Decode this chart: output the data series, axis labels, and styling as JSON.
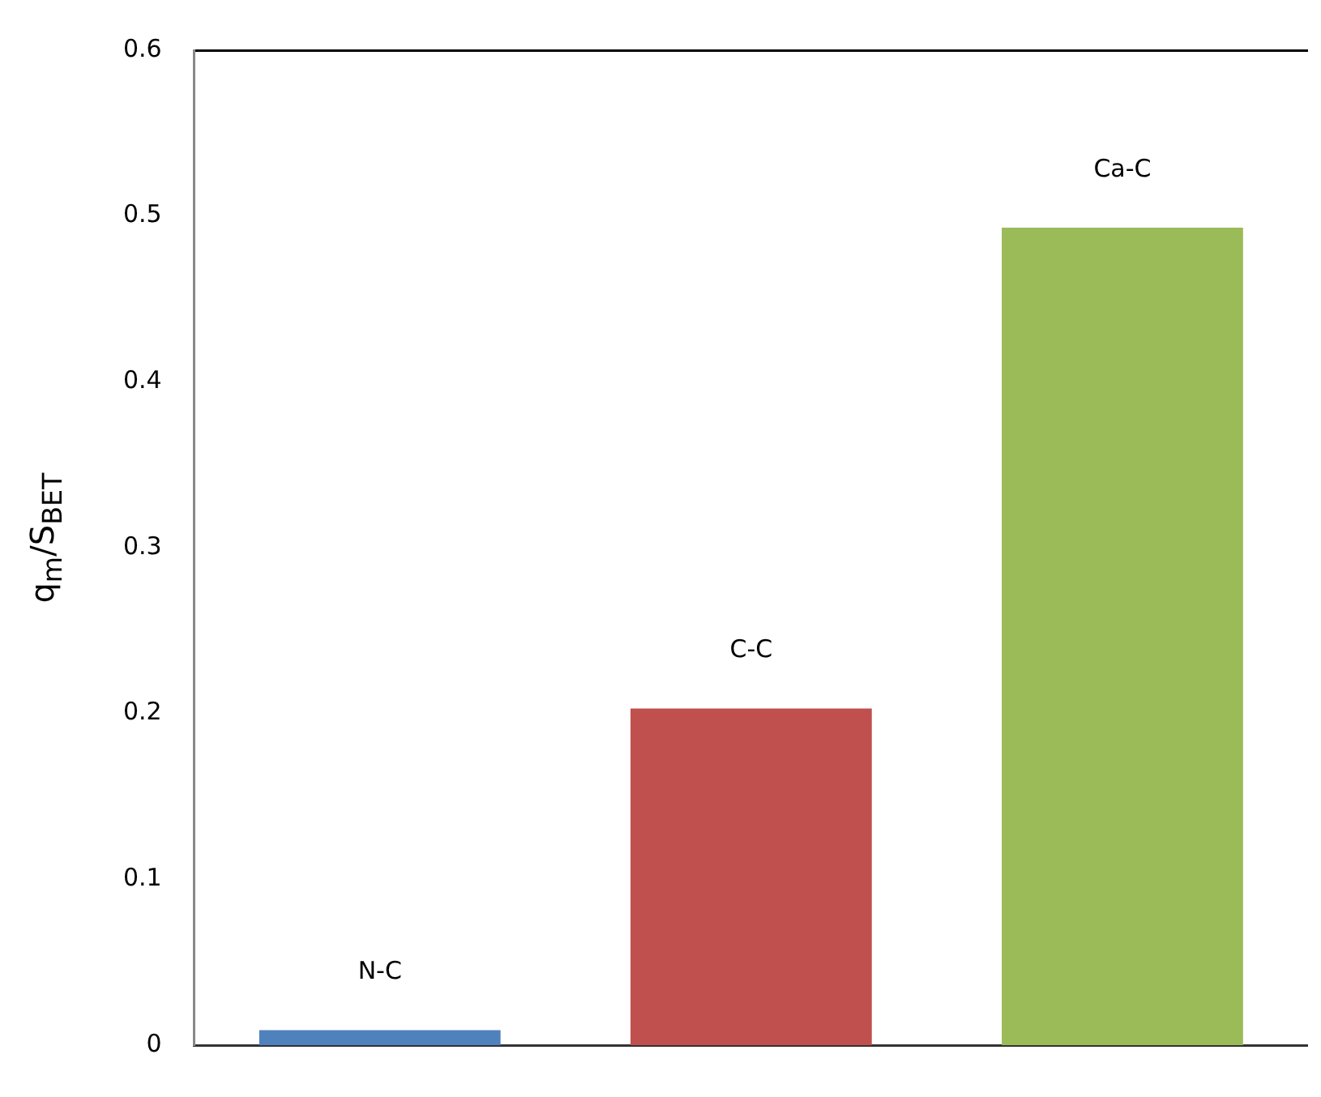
{
  "chart_data": {
    "type": "bar",
    "ylabel": "q$_{m}$/S$_{BET}$",
    "categories": [
      "N-C",
      "C-C",
      "Ca-C"
    ],
    "values": [
      0.009,
      0.203,
      0.493
    ],
    "colors": [
      "#4f81bd",
      "#c0504d",
      "#9bbb59"
    ],
    "ylim": [
      0,
      0.6
    ],
    "yticks": [
      0,
      0.1,
      0.2,
      0.3,
      0.4,
      0.5,
      0.6
    ],
    "grid": false,
    "legend": false,
    "tick_labels": "y"
  }
}
